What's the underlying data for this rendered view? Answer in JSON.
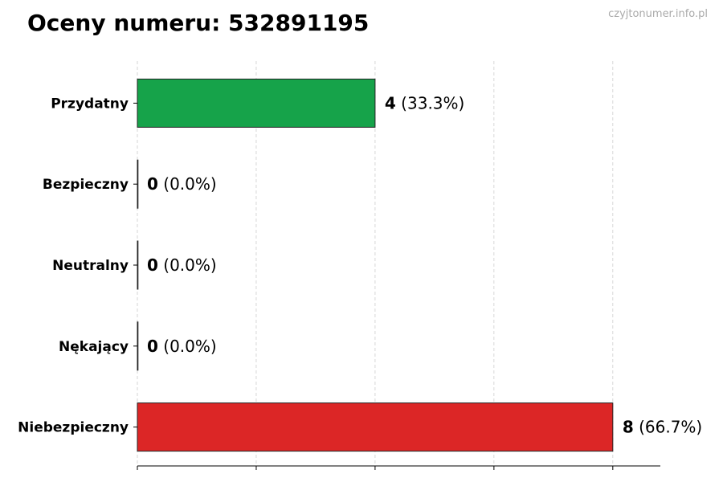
{
  "chart_data": {
    "type": "bar",
    "orientation": "horizontal",
    "title": "Oceny numeru: 532891195",
    "watermark": "czyjtonumer.info.pl",
    "categories": [
      "Przydatny",
      "Bezpieczny",
      "Neutralny",
      "Nękający",
      "Niebezpieczny"
    ],
    "values": [
      4,
      0,
      0,
      0,
      8
    ],
    "percent_labels": [
      "(33.3%)",
      "(0.0%)",
      "(0.0%)",
      "(0.0%)",
      "(66.7%)"
    ],
    "colors": [
      "#16a34a",
      "#9ca3af",
      "#9ca3af",
      "#9ca3af",
      "#dc2626"
    ],
    "xlim": [
      0,
      8.8
    ],
    "xticks": [
      0,
      2,
      4,
      6,
      8
    ],
    "grid": true,
    "xlabel": "",
    "ylabel": ""
  }
}
